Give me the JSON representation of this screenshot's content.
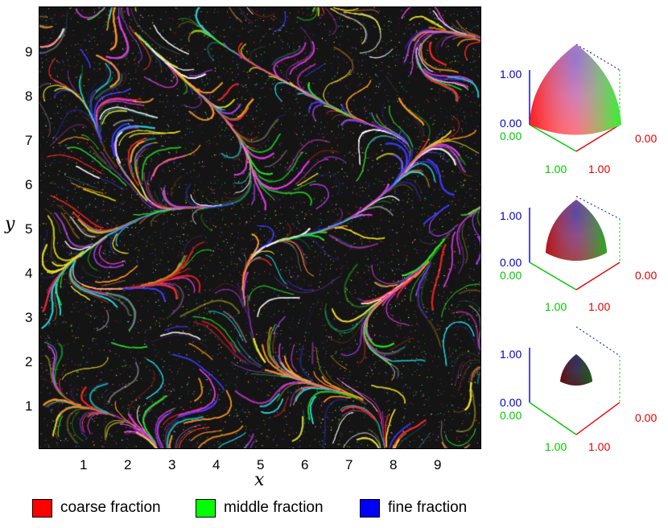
{
  "main_plot": {
    "x_axis_title": "x",
    "y_axis_title": "y",
    "x_ticks": [
      "1",
      "2",
      "3",
      "4",
      "5",
      "6",
      "7",
      "8",
      "9"
    ],
    "y_ticks": [
      "9",
      "8",
      "7",
      "6",
      "5",
      "4",
      "3",
      "2",
      "1"
    ],
    "x_range": [
      0,
      10
    ],
    "y_range": [
      0,
      10
    ],
    "background_color": "#141414"
  },
  "legend": [
    {
      "label": "coarse fraction",
      "color": "#ff0000"
    },
    {
      "label": "middle fraction",
      "color": "#00ff00"
    },
    {
      "label": "fine fraction",
      "color": "#0000ff"
    }
  ],
  "insets": [
    {
      "blue_axis_max": "1.00",
      "blue_axis_min": "0.00",
      "green_axis_min": "0.00",
      "red_axis_min": "0.00",
      "green_axis_max": "1.00",
      "red_axis_max": "1.00",
      "relative_size": 1.0
    },
    {
      "blue_axis_max": "1.00",
      "blue_axis_min": "0.00",
      "green_axis_min": "0.00",
      "red_axis_min": "0.00",
      "green_axis_max": "1.00",
      "red_axis_max": "1.00",
      "relative_size": 0.75
    },
    {
      "blue_axis_max": "1.00",
      "blue_axis_min": "0.00",
      "green_axis_min": "0.00",
      "red_axis_min": "0.00",
      "green_axis_max": "1.00",
      "red_axis_max": "1.00",
      "relative_size": 0.45
    }
  ],
  "colors": {
    "red_axis": "#e00000",
    "green_axis": "#00c800",
    "blue_axis": "#0000c8"
  }
}
